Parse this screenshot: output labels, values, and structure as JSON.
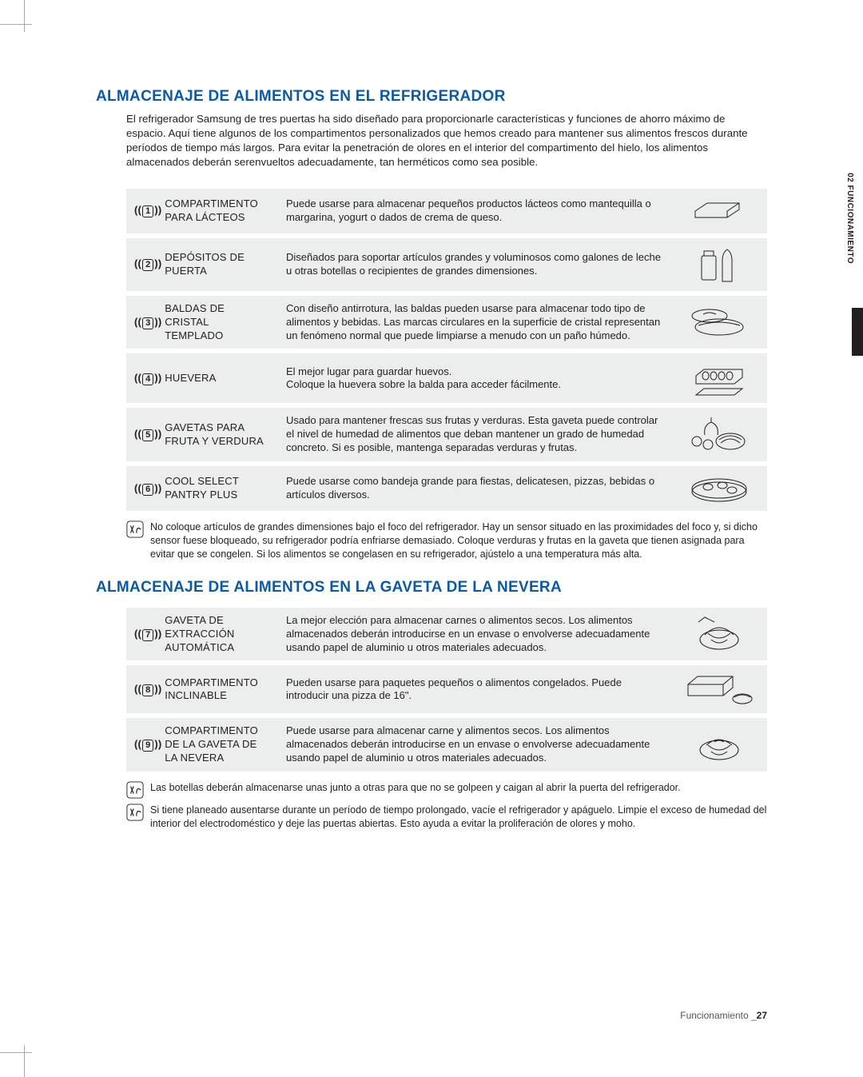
{
  "colors": {
    "heading": "#0b5aa6",
    "row_bg": "#eceded",
    "text": "#231f20"
  },
  "side_tab": "02  FUNCIONAMIENTO",
  "section1": {
    "title": "ALMACENAJE DE ALIMENTOS EN EL REFRIGERADOR",
    "intro": "El refrigerador Samsung de tres puertas ha sido diseñado para proporcionarle características y funciones de ahorro máximo de espacio. Aquí tiene algunos de los compartimentos personalizados que hemos creado para mantener sus alimentos frescos durante períodos de tiempo más largos. Para evitar la penetración de olores en el interior del compartimento del hielo, los alimentos almacenados deberán serenvueltos adecuadamente, tan herméticos como sea posible.",
    "rows": [
      {
        "num": "1",
        "label": "COMPARTIMENTO PARA LÁCTEOS",
        "desc": "Puede usarse para almacenar pequeños productos lácteos como mantequilla o margarina, yogurt o dados de crema de queso."
      },
      {
        "num": "2",
        "label": "DEPÓSITOS DE PUERTA",
        "desc": "Diseñados para soportar artículos grandes y voluminosos como galones de leche u otras botellas o recipientes de grandes dimensiones."
      },
      {
        "num": "3",
        "label": "BALDAS DE CRISTAL TEMPLADO",
        "desc": "Con diseño antirrotura, las baldas pueden usarse para almacenar todo tipo de alimentos y bebidas. Las marcas circulares en la superficie de cristal representan un fenómeno normal que puede limpiarse a menudo con un paño húmedo."
      },
      {
        "num": "4",
        "label": "HUEVERA",
        "desc": "El mejor lugar para guardar huevos.\nColoque la huevera sobre la balda para acceder fácilmente."
      },
      {
        "num": "5",
        "label": "GAVETAS PARA FRUTA Y VERDURA",
        "desc": "Usado para mantener frescas sus frutas y verduras. Esta gaveta puede controlar el nivel de humedad de alimentos que deban mantener un grado de humedad concreto. Si es posible, mantenga separadas verduras y frutas."
      },
      {
        "num": "6",
        "label": "COOL SELECT PANTRY PLUS",
        "desc": "Puede usarse como bandeja grande para fiestas, delicatesen, pizzas, bebidas o artículos diversos."
      }
    ],
    "note": "No coloque artículos de grandes dimensiones bajo el foco del refrigerador. Hay un sensor situado en las proximidades del foco y, si dicho sensor fuese bloqueado, su refrigerador podría enfriarse demasiado. Coloque verduras y frutas en la gaveta que tienen asignada para evitar que se congelen. Si los alimentos se congelasen en su refrigerador, ajústelo a una temperatura más alta."
  },
  "section2": {
    "title": "ALMACENAJE DE ALIMENTOS EN LA GAVETA DE LA NEVERA",
    "rows": [
      {
        "num": "7",
        "label": "GAVETA DE EXTRACCIÓN AUTOMÁTICA",
        "desc": "La mejor elección para almacenar carnes o alimentos secos. Los alimentos almacenados deberán introducirse en un envase o envolverse adecuadamente usando papel de aluminio u otros materiales adecuados."
      },
      {
        "num": "8",
        "label": "COMPARTIMENTO INCLINABLE",
        "desc": "Pueden usarse para paquetes pequeños o alimentos congelados. Puede introducir una pizza de 16\"."
      },
      {
        "num": "9",
        "label": "COMPARTIMENTO DE LA GAVETA DE LA NEVERA",
        "desc": "Puede usarse para almacenar carne y alimentos secos. Los alimentos almacenados deberán introducirse en un envase o envolverse adecuadamente usando papel de aluminio u otros materiales adecuados."
      }
    ],
    "notes": [
      "Las botellas deberán almacenarse unas junto a otras para que no se golpeen y caigan al abrir la puerta del refrigerador.",
      "Si tiene planeado ausentarse durante un período de tiempo prolongado, vacíe el refrigerador y apáguelo. Limpie el exceso de humedad del interior del electrodoméstico y deje las puertas abiertas. Esto ayuda a evitar la proliferación de olores y moho."
    ]
  },
  "footer": {
    "text": "Funcionamiento _",
    "page": "27"
  }
}
